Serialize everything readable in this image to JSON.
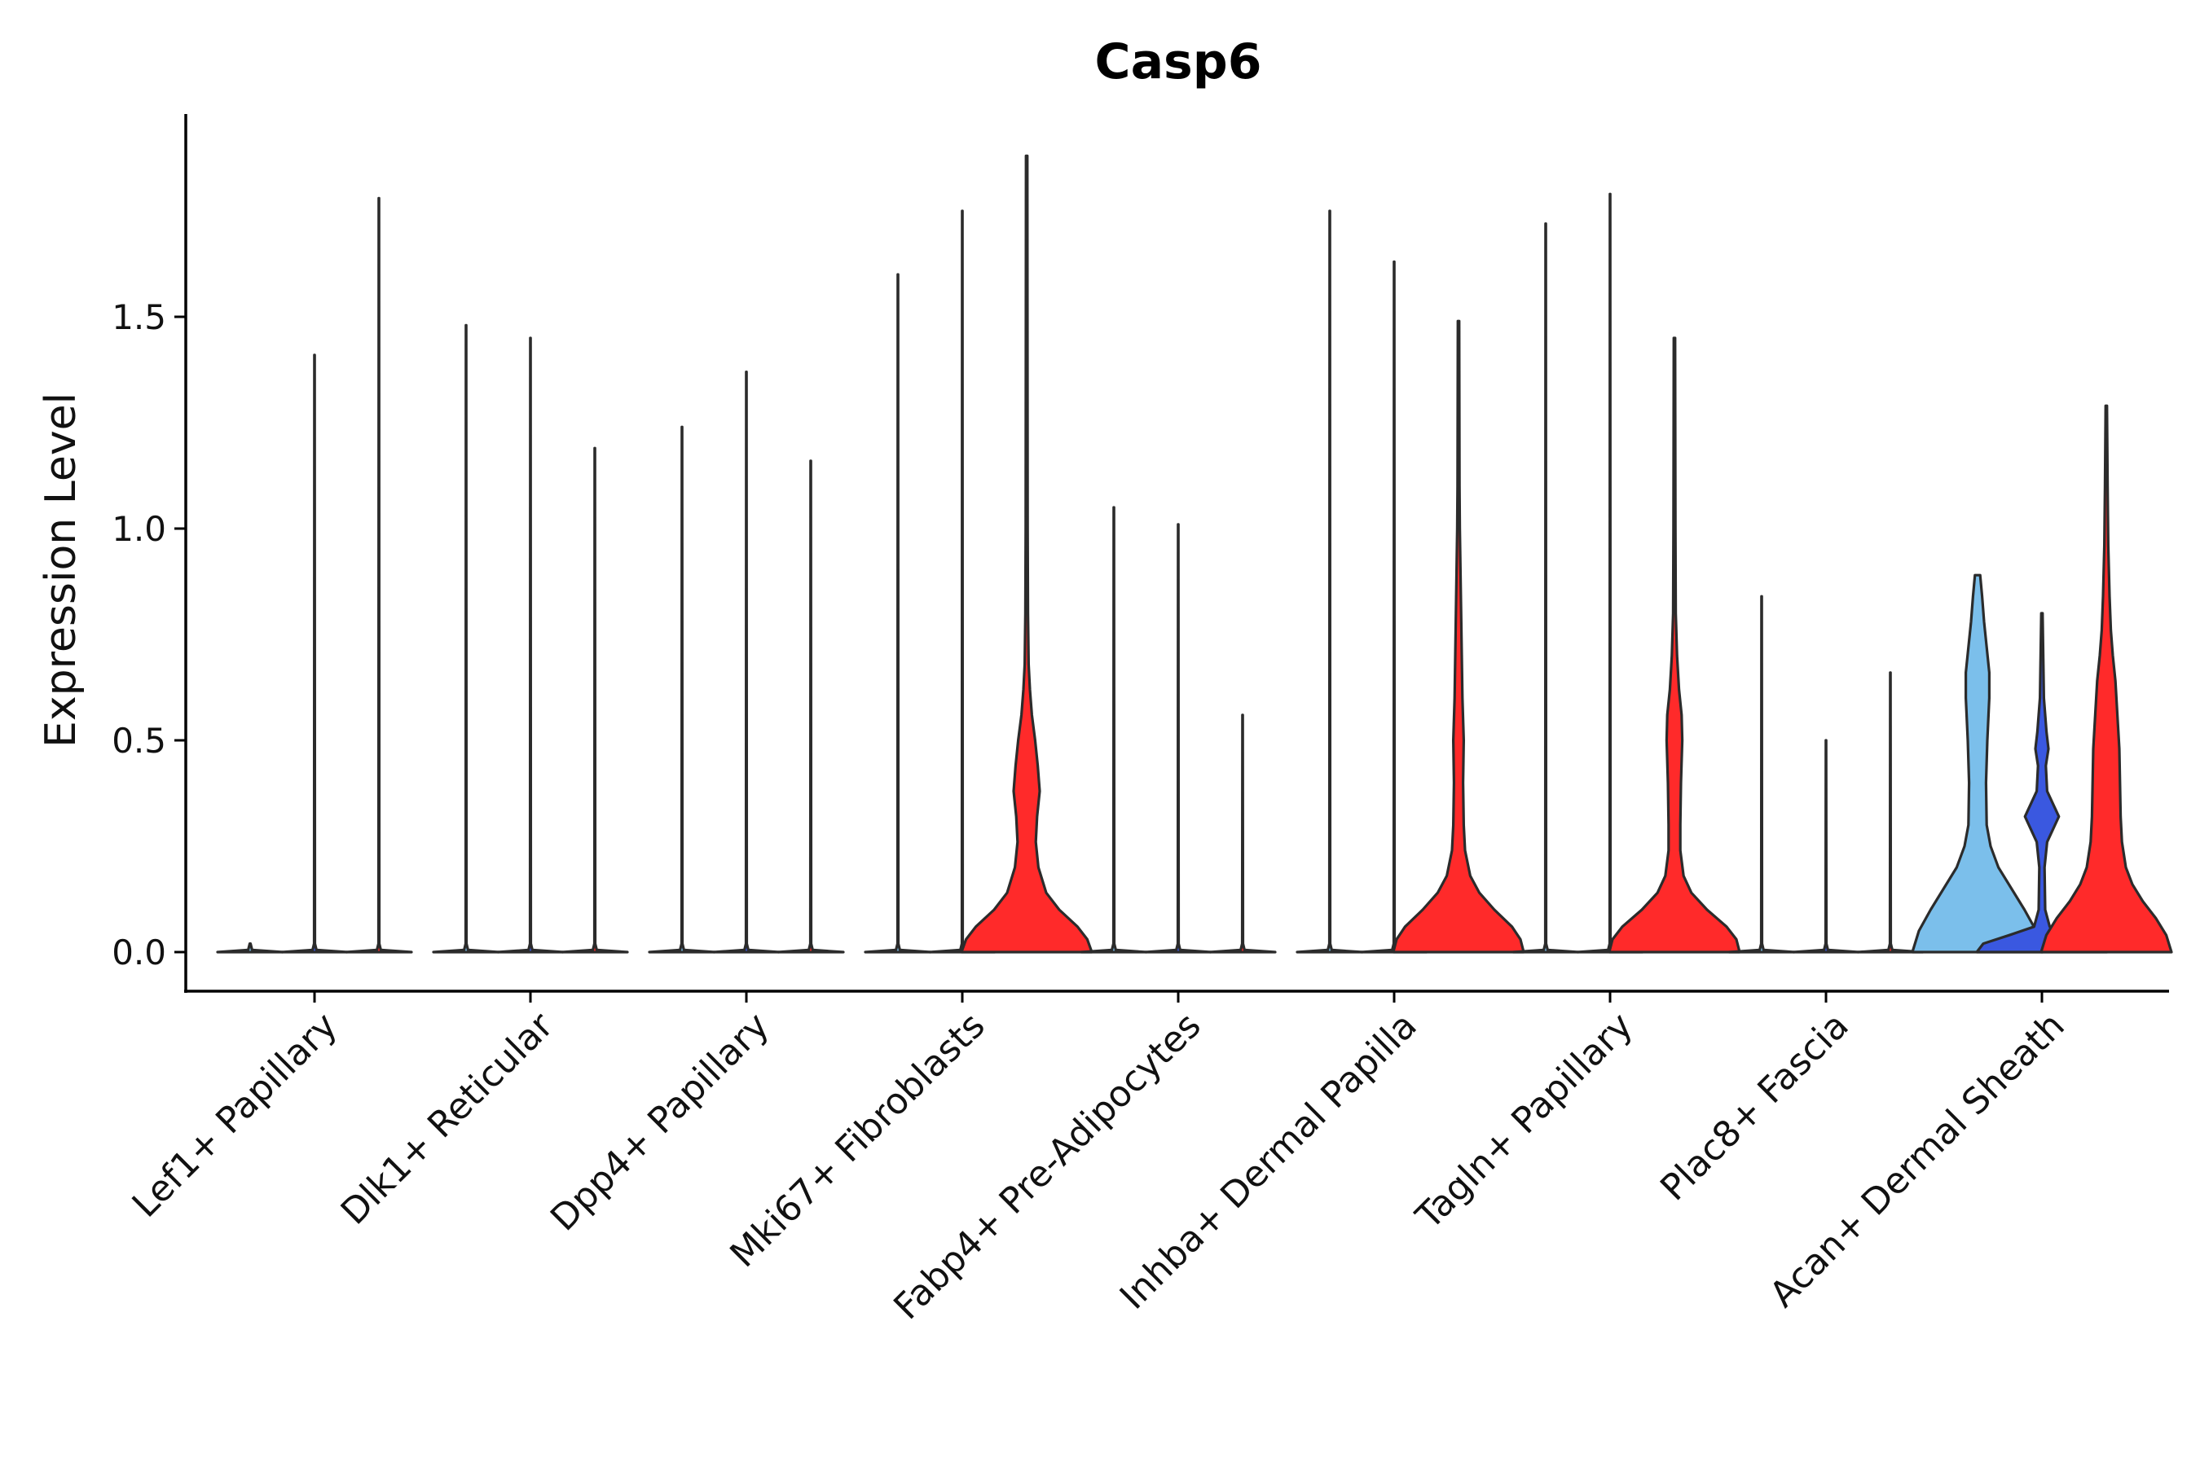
{
  "chart_data": {
    "type": "violin",
    "title": "Casp6",
    "xlabel": "",
    "ylabel": "Expression Level",
    "ylim": [
      -0.1,
      1.98
    ],
    "yticks": [
      "0.0",
      "0.5",
      "1.0",
      "1.5"
    ],
    "ytick_values": [
      0,
      0.5,
      1.0,
      1.5
    ],
    "categories": [
      "Lef1+ Papillary",
      "Dlk1+ Reticular",
      "Dpp4+ Papillary",
      "Mki67+ Fibroblasts",
      "Fabp4+ Pre-Adipocytes",
      "Inhba+ Dermal Papilla",
      "Tagln+ Papillary",
      "Plac8+ Fascia",
      "Acan+ Dermal Sheath"
    ],
    "groups_per_category": 3,
    "series": [
      {
        "name": "group 1",
        "color": "#7bbfeb",
        "max_values": [
          null,
          1.48,
          1.24,
          1.6,
          1.05,
          1.75,
          1.72,
          0.84,
          0.89
        ]
      },
      {
        "name": "group 2",
        "color": "#3a58e0",
        "max_values": [
          1.41,
          1.45,
          1.37,
          1.75,
          1.01,
          1.63,
          1.79,
          0.5,
          0.8
        ]
      },
      {
        "name": "group 3",
        "color": "#ff2a2a",
        "max_values": [
          1.78,
          1.19,
          1.16,
          1.88,
          0.56,
          1.49,
          1.45,
          0.66,
          1.29
        ]
      }
    ],
    "filled_violins": [
      {
        "category": "Mki67+ Fibroblasts",
        "group": 3,
        "color": "#ff2a2a",
        "profile": [
          [
            0,
            1
          ],
          [
            0.03,
            0.93
          ],
          [
            0.06,
            0.78
          ],
          [
            0.1,
            0.5
          ],
          [
            0.14,
            0.3
          ],
          [
            0.2,
            0.18
          ],
          [
            0.26,
            0.14
          ],
          [
            0.32,
            0.16
          ],
          [
            0.38,
            0.2
          ],
          [
            0.44,
            0.17
          ],
          [
            0.5,
            0.13
          ],
          [
            0.56,
            0.08
          ],
          [
            0.62,
            0.05
          ],
          [
            0.68,
            0.03
          ],
          [
            0.8,
            0.02
          ],
          [
            1.0,
            0.015
          ],
          [
            1.88,
            0.01
          ]
        ]
      },
      {
        "category": "Inhba+ Dermal Papilla",
        "group": 3,
        "color": "#ff2a2a",
        "profile": [
          [
            0,
            1
          ],
          [
            0.03,
            0.95
          ],
          [
            0.06,
            0.82
          ],
          [
            0.1,
            0.55
          ],
          [
            0.14,
            0.32
          ],
          [
            0.18,
            0.18
          ],
          [
            0.24,
            0.1
          ],
          [
            0.3,
            0.08
          ],
          [
            0.4,
            0.07
          ],
          [
            0.5,
            0.08
          ],
          [
            0.6,
            0.06
          ],
          [
            0.7,
            0.05
          ],
          [
            0.8,
            0.04
          ],
          [
            0.9,
            0.03
          ],
          [
            1.0,
            0.02
          ],
          [
            1.1,
            0.015
          ],
          [
            1.49,
            0.01
          ]
        ]
      },
      {
        "category": "Tagln+ Papillary",
        "group": 3,
        "color": "#ff2a2a",
        "profile": [
          [
            0,
            1
          ],
          [
            0.03,
            0.95
          ],
          [
            0.06,
            0.8
          ],
          [
            0.1,
            0.5
          ],
          [
            0.14,
            0.26
          ],
          [
            0.18,
            0.14
          ],
          [
            0.24,
            0.09
          ],
          [
            0.3,
            0.09
          ],
          [
            0.4,
            0.1
          ],
          [
            0.5,
            0.12
          ],
          [
            0.56,
            0.11
          ],
          [
            0.62,
            0.07
          ],
          [
            0.7,
            0.04
          ],
          [
            0.8,
            0.02
          ],
          [
            1.0,
            0.015
          ],
          [
            1.45,
            0.01
          ]
        ]
      },
      {
        "category": "Acan+ Dermal Sheath",
        "group": 1,
        "color": "#7bbfeb",
        "profile": [
          [
            0,
            1
          ],
          [
            0.05,
            0.9
          ],
          [
            0.1,
            0.72
          ],
          [
            0.15,
            0.52
          ],
          [
            0.2,
            0.32
          ],
          [
            0.25,
            0.2
          ],
          [
            0.3,
            0.14
          ],
          [
            0.4,
            0.13
          ],
          [
            0.5,
            0.15
          ],
          [
            0.6,
            0.18
          ],
          [
            0.66,
            0.18
          ],
          [
            0.72,
            0.14
          ],
          [
            0.78,
            0.1
          ],
          [
            0.84,
            0.07
          ],
          [
            0.89,
            0.04
          ]
        ]
      },
      {
        "category": "Acan+ Dermal Sheath",
        "group": 2,
        "color": "#3a58e0",
        "profile": [
          [
            0,
            1
          ],
          [
            0.02,
            0.9
          ],
          [
            0.04,
            0.5
          ],
          [
            0.06,
            0.12
          ],
          [
            0.1,
            0.05
          ],
          [
            0.2,
            0.04
          ],
          [
            0.26,
            0.08
          ],
          [
            0.3,
            0.2
          ],
          [
            0.32,
            0.26
          ],
          [
            0.34,
            0.2
          ],
          [
            0.38,
            0.08
          ],
          [
            0.44,
            0.06
          ],
          [
            0.48,
            0.1
          ],
          [
            0.52,
            0.07
          ],
          [
            0.6,
            0.03
          ],
          [
            0.8,
            0.01
          ]
        ]
      },
      {
        "category": "Acan+ Dermal Sheath",
        "group": 3,
        "color": "#ff2a2a",
        "profile": [
          [
            0,
            1
          ],
          [
            0.04,
            0.92
          ],
          [
            0.08,
            0.76
          ],
          [
            0.12,
            0.56
          ],
          [
            0.16,
            0.4
          ],
          [
            0.2,
            0.3
          ],
          [
            0.26,
            0.24
          ],
          [
            0.32,
            0.22
          ],
          [
            0.4,
            0.21
          ],
          [
            0.48,
            0.2
          ],
          [
            0.56,
            0.17
          ],
          [
            0.64,
            0.14
          ],
          [
            0.7,
            0.1
          ],
          [
            0.76,
            0.07
          ],
          [
            0.84,
            0.05
          ],
          [
            0.96,
            0.03
          ],
          [
            1.1,
            0.02
          ],
          [
            1.29,
            0.01
          ]
        ]
      }
    ]
  }
}
